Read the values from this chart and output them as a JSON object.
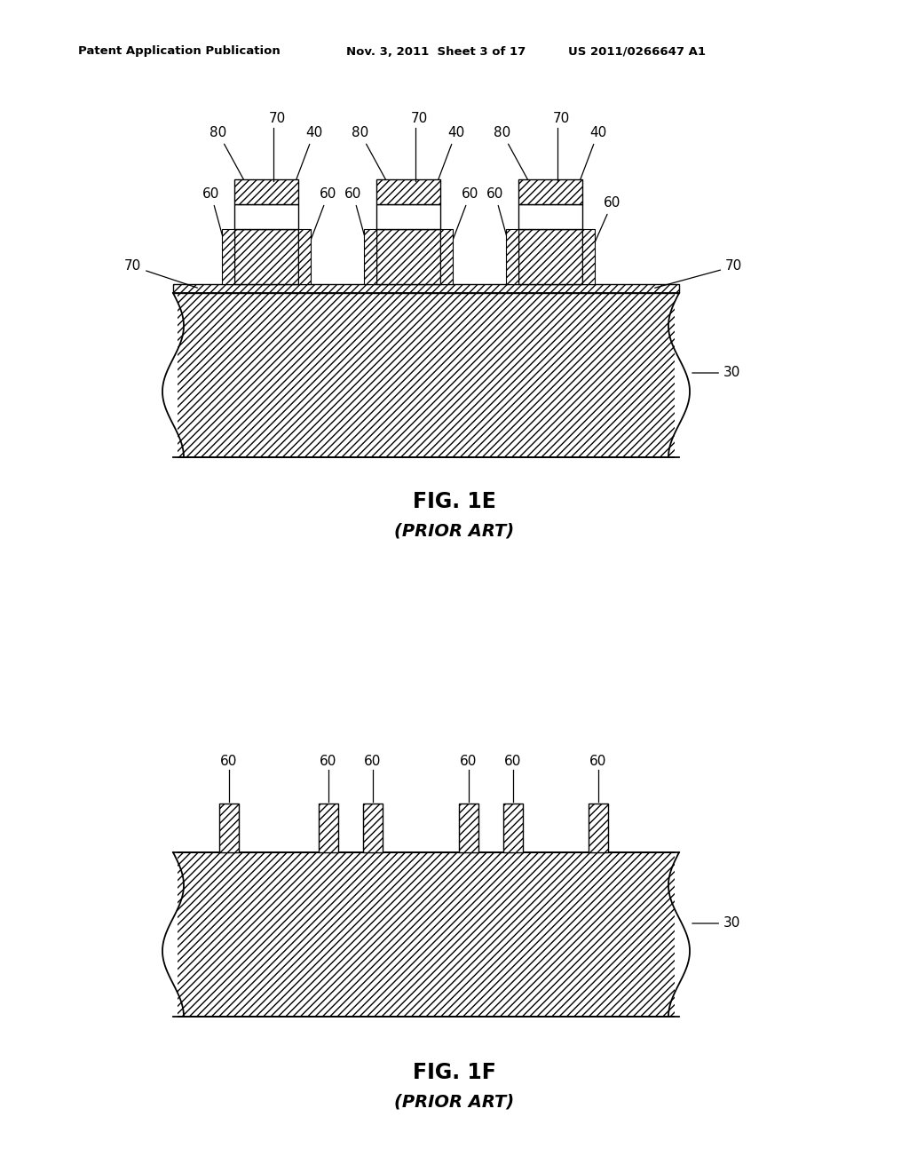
{
  "bg_color": "#ffffff",
  "header_left": "Patent Application Publication",
  "header_mid": "Nov. 3, 2011  Sheet 3 of 17",
  "header_right": "US 2011/0266647 A1",
  "fig1e_label": "FIG. 1E",
  "fig1e_prior": "(PRIOR ART)",
  "fig1f_label": "FIG. 1F",
  "fig1f_prior": "(PRIOR ART)"
}
